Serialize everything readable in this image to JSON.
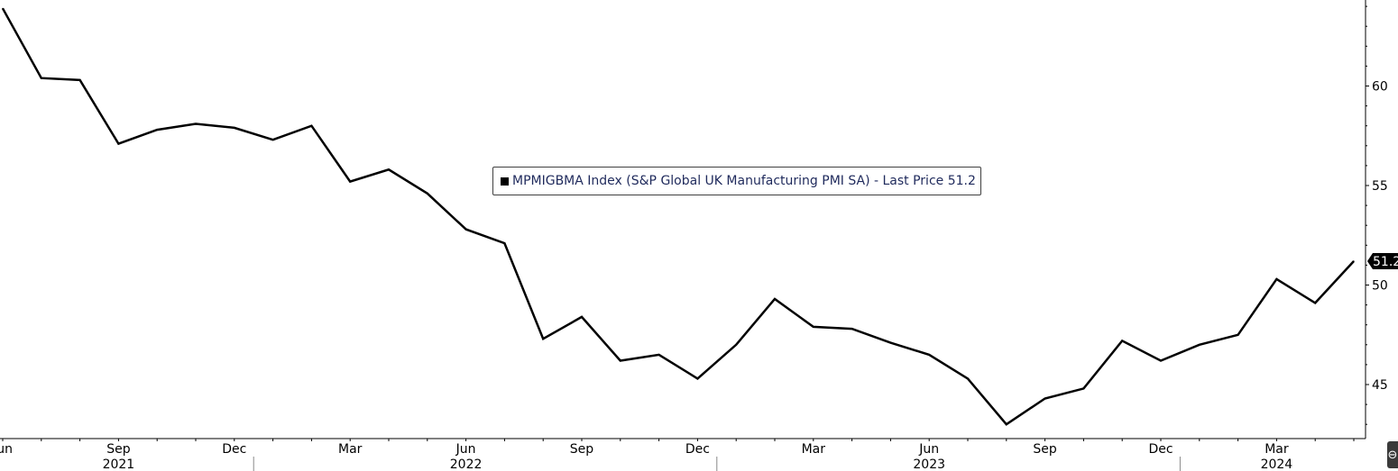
{
  "chart_data": {
    "type": "line",
    "series": [
      {
        "name": "MPMIGBMA Index (S&P Global UK Manufacturing PMI SA) - Last Price 51.2",
        "color": "#000000",
        "x": [
          "2021-06",
          "2021-07",
          "2021-08",
          "2021-09",
          "2021-10",
          "2021-11",
          "2021-12",
          "2022-01",
          "2022-02",
          "2022-03",
          "2022-04",
          "2022-05",
          "2022-06",
          "2022-07",
          "2022-08",
          "2022-09",
          "2022-10",
          "2022-11",
          "2022-12",
          "2023-01",
          "2023-02",
          "2023-03",
          "2023-04",
          "2023-05",
          "2023-06",
          "2023-07",
          "2023-08",
          "2023-09",
          "2023-10",
          "2023-11",
          "2023-12",
          "2024-01",
          "2024-02",
          "2024-03",
          "2024-04",
          "2024-05"
        ],
        "values": [
          63.9,
          60.4,
          60.3,
          57.1,
          57.8,
          58.1,
          57.9,
          57.3,
          58.0,
          55.2,
          55.8,
          54.6,
          52.8,
          52.1,
          47.3,
          48.4,
          46.2,
          46.5,
          45.3,
          47.0,
          49.3,
          47.9,
          47.8,
          47.1,
          46.5,
          45.3,
          43.0,
          44.3,
          44.8,
          47.2,
          46.2,
          47.0,
          47.5,
          50.3,
          49.1,
          51.2
        ]
      }
    ],
    "y_ticks": [
      45,
      50,
      55,
      60
    ],
    "ylim": [
      42.2,
      64.2
    ],
    "x_month_labels": [
      "Jun",
      "Sep",
      "Dec",
      "Mar",
      "Jun",
      "Sep",
      "Dec",
      "Mar",
      "Jun",
      "Sep",
      "Dec",
      "Mar"
    ],
    "x_year_labels": [
      "2021",
      "2022",
      "2023",
      "2024"
    ],
    "last_price_label": "51.2",
    "axis_side": "right",
    "grid": false,
    "legend_position": "center"
  },
  "legend": {
    "label": "MPMIGBMA Index (S&P Global UK Manufacturing PMI SA) - Last Price 51.2"
  },
  "corner_button": {
    "label": "⊖"
  }
}
